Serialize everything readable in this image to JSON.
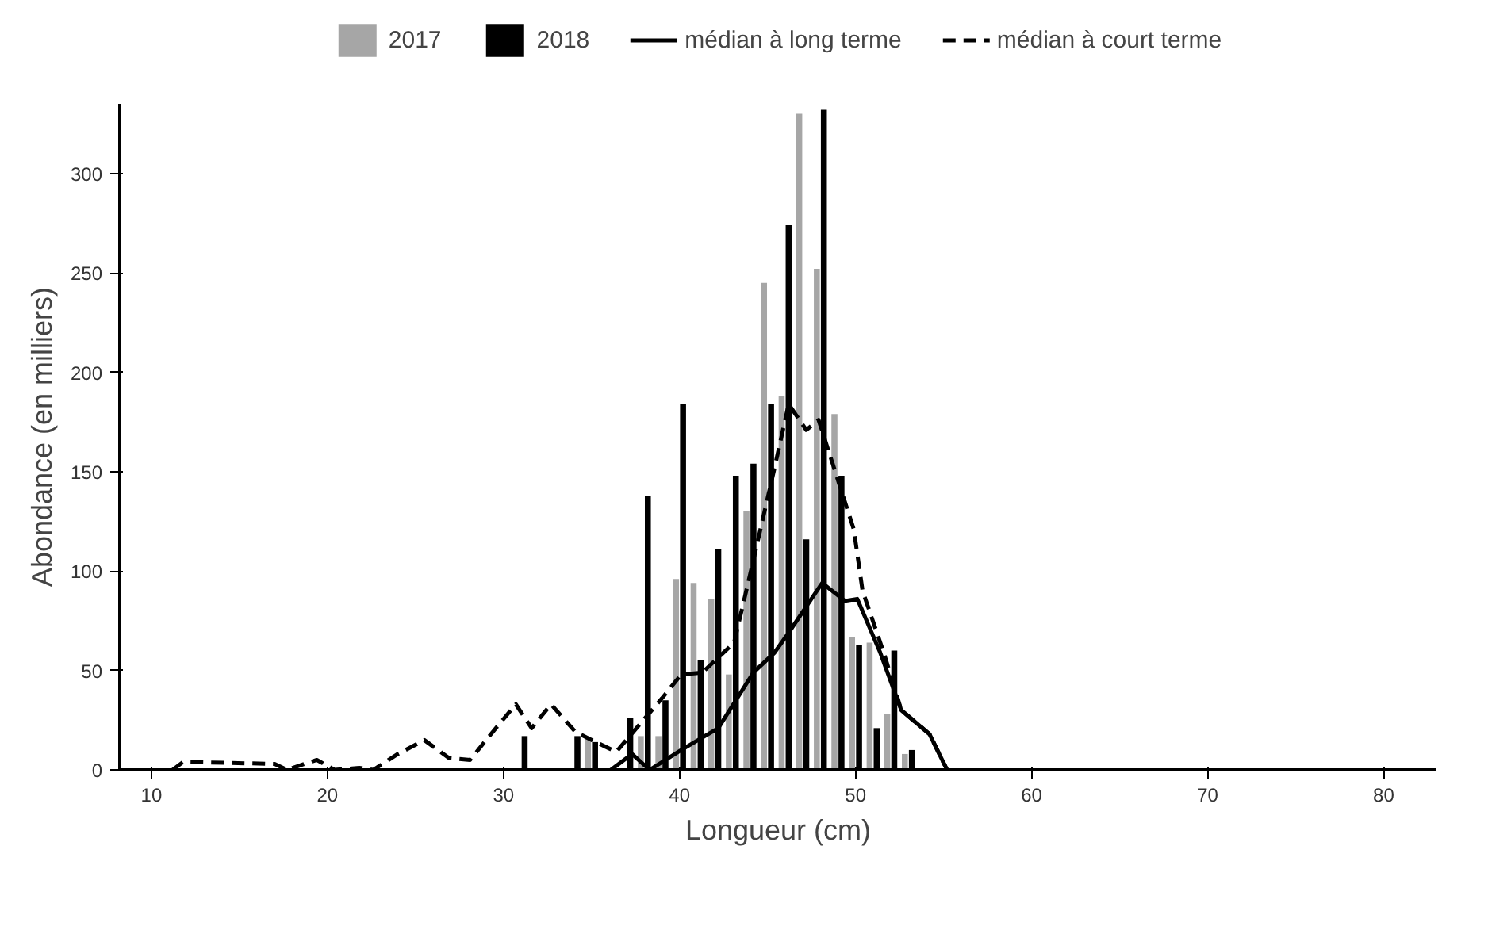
{
  "chart_data": {
    "type": "bar",
    "xlabel": "Longueur (cm)",
    "ylabel": "Abondance (en milliers)",
    "xlim": [
      8.2,
      83
    ],
    "xticks": [
      10,
      20,
      30,
      40,
      50,
      60,
      70,
      80
    ],
    "ylim": [
      0,
      335
    ],
    "yticks": [
      0,
      50,
      100,
      150,
      200,
      250,
      300
    ],
    "grid": false,
    "legend": "top",
    "series": [
      {
        "name": "2017",
        "color": "#a6a6a6",
        "x": [
          35,
          38,
          39,
          40,
          41,
          42,
          43,
          44,
          45,
          46,
          47,
          48,
          49,
          50,
          51,
          52,
          53
        ],
        "values": [
          16,
          17,
          17,
          96,
          94,
          86,
          48,
          130,
          245,
          188,
          330,
          252,
          179,
          67,
          64,
          28,
          8
        ]
      },
      {
        "name": "2018",
        "color": "#000000",
        "x": [
          31,
          34,
          35,
          37,
          38,
          39,
          40,
          41,
          42,
          43,
          44,
          45,
          46,
          47,
          48,
          49,
          50,
          51,
          52,
          53
        ],
        "values": [
          17,
          17,
          14,
          26,
          138,
          35,
          184,
          55,
          111,
          148,
          154,
          184,
          274,
          116,
          332,
          148,
          63,
          21,
          60,
          10
        ]
      },
      {
        "name": "médian à long terme",
        "type": "line",
        "line_style": "solid",
        "color": "#000000",
        "x": [
          36.1,
          37.3,
          38.3,
          40.1,
          42.2,
          44.2,
          45.4,
          46.2,
          48.1,
          49.4,
          50.1,
          51.4,
          52.6,
          54.2,
          55.2
        ],
        "values": [
          0,
          8,
          0,
          10,
          21,
          49,
          59,
          69,
          94,
          85,
          86,
          59,
          30,
          18,
          0
        ]
      },
      {
        "name": "médian à court terme",
        "type": "line",
        "line_style": "dashed",
        "color": "#000000",
        "x": [
          11.2,
          11.8,
          17.0,
          17.7,
          18.7,
          19.4,
          20.4,
          21.8,
          22.6,
          24.0,
          25.5,
          26.9,
          28.1,
          29.1,
          30.7,
          31.6,
          32.7,
          34.1,
          36.4,
          39.0,
          40.1,
          41.3,
          43.1,
          44.0,
          45.4,
          46.2,
          47.2,
          47.9,
          48.7,
          49.9,
          50.4,
          51.6,
          52.6,
          54.2,
          55.2
        ],
        "values": [
          0,
          4,
          3,
          0,
          3,
          5,
          0,
          1,
          0,
          8,
          15,
          6,
          5,
          16,
          33,
          21,
          33,
          19,
          9,
          36,
          48,
          49,
          64,
          98,
          152,
          184,
          171,
          176,
          154,
          121,
          90,
          59,
          30,
          18,
          0
        ]
      }
    ]
  }
}
